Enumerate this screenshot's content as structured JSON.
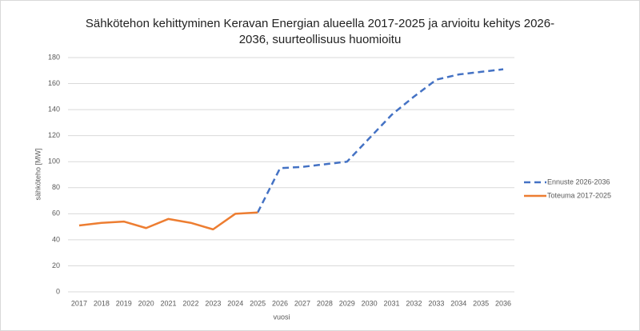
{
  "chart_data": {
    "type": "line",
    "title": "Sähkötehon kehittyminen Keravan Energian alueella 2017-2025 ja arvioitu kehitys 2026-2036, suurteollisuus huomioitu",
    "x_label": "vuosi",
    "y_label": "sähköteho [MW]",
    "categories": [
      "2017",
      "2018",
      "2019",
      "2020",
      "2021",
      "2022",
      "2023",
      "2024",
      "2025",
      "2026",
      "2027",
      "2028",
      "2029",
      "2030",
      "2031",
      "2032",
      "2033",
      "2034",
      "2035",
      "2036"
    ],
    "series": [
      {
        "name": "Ennuste 2026-2036",
        "color": "#4472c4",
        "dashed": true,
        "values": [
          null,
          null,
          null,
          null,
          null,
          null,
          null,
          null,
          61,
          95,
          96,
          98,
          100,
          118,
          136,
          150,
          163,
          167,
          169,
          171
        ]
      },
      {
        "name": "Toteuma 2017-2025",
        "color": "#ed7d31",
        "dashed": false,
        "values": [
          51,
          53,
          54,
          49,
          56,
          53,
          48,
          60,
          61,
          null,
          null,
          null,
          null,
          null,
          null,
          null,
          null,
          null,
          null,
          null
        ]
      }
    ],
    "ylim": [
      0,
      180
    ],
    "yticks": [
      0,
      20,
      40,
      60,
      80,
      100,
      120,
      140,
      160,
      180
    ],
    "grid": true,
    "legend": "right"
  }
}
